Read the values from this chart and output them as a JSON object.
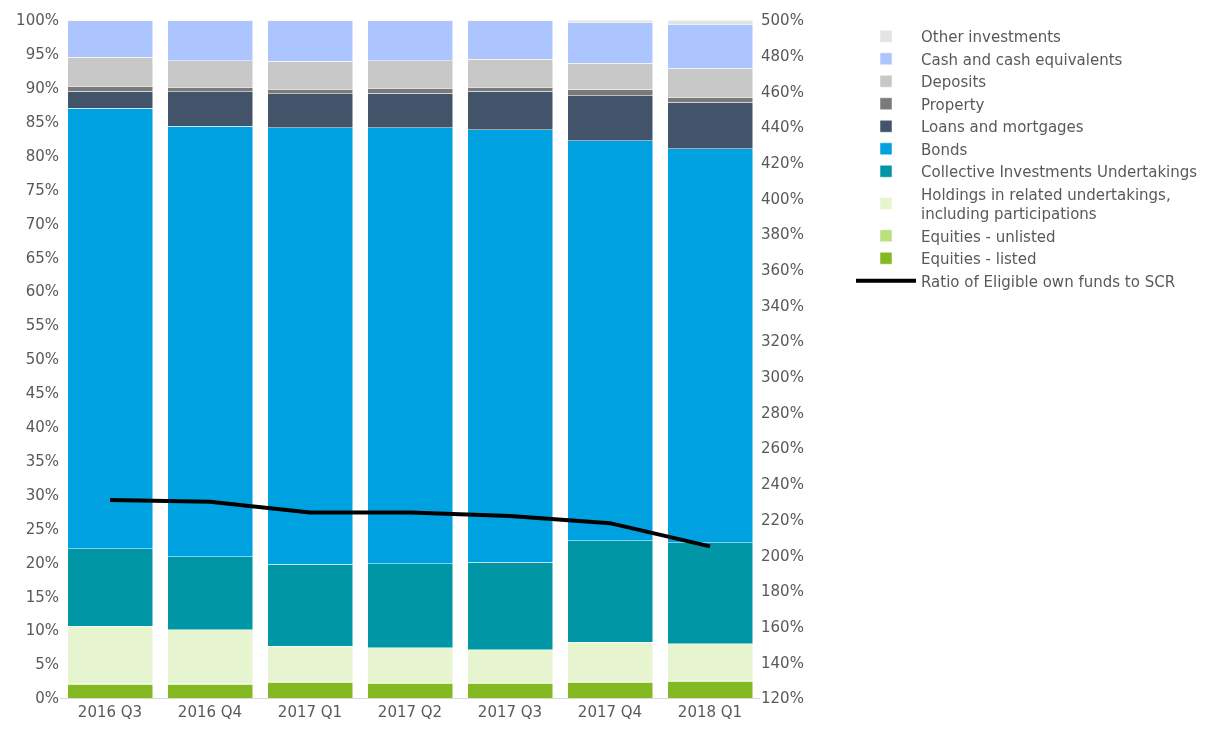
{
  "chart_data": {
    "type": "bar",
    "stacked": true,
    "categories": [
      "2016 Q3",
      "2016 Q4",
      "2017 Q1",
      "2017 Q2",
      "2017 Q3",
      "2017 Q4",
      "2018 Q1"
    ],
    "series": [
      {
        "name": "Equities - listed",
        "color": "#84b922",
        "values": [
          2.0,
          2.0,
          2.3,
          2.2,
          2.2,
          2.3,
          2.5
        ]
      },
      {
        "name": "Equities - unlisted",
        "color": "#b9e07a",
        "values": [
          0.1,
          0.1,
          0.1,
          0.1,
          0.1,
          0.1,
          0.1
        ]
      },
      {
        "name": "Holdings in related undertakings, including participations",
        "color": "#e6f4d0",
        "values": [
          8.5,
          8.0,
          5.2,
          5.1,
          4.8,
          5.8,
          5.4
        ]
      },
      {
        "name": "Collective Investments Undertakings",
        "color": "#0096a6",
        "values": [
          11.4,
          10.7,
          12.1,
          12.4,
          12.9,
          15.0,
          14.9
        ]
      },
      {
        "name": "Bonds",
        "color": "#00a1e0",
        "values": [
          65.0,
          63.5,
          64.4,
          64.3,
          63.8,
          59.0,
          58.1
        ]
      },
      {
        "name": "Loans and mortgages",
        "color": "#435369",
        "values": [
          2.5,
          5.1,
          5.0,
          5.1,
          5.7,
          6.6,
          6.9
        ]
      },
      {
        "name": "Property",
        "color": "#7a7a7a",
        "values": [
          0.7,
          0.7,
          0.7,
          0.7,
          0.6,
          0.9,
          0.7
        ]
      },
      {
        "name": "Deposits",
        "color": "#c8c8c8",
        "values": [
          4.3,
          3.9,
          4.1,
          4.1,
          4.1,
          3.9,
          4.3
        ]
      },
      {
        "name": "Cash and cash equivalents",
        "color": "#adc5ff",
        "values": [
          5.4,
          5.9,
          6.0,
          5.9,
          5.7,
          6.0,
          6.5
        ]
      },
      {
        "name": "Other investments",
        "color": "#e3e3e3",
        "values": [
          0.1,
          0.1,
          0.1,
          0.1,
          0.1,
          0.4,
          0.6
        ]
      },
      {
        "name": "Ratio of Eligible own funds to SCR",
        "color": "#000000",
        "type": "line",
        "axis": "y2",
        "values": [
          231,
          230,
          224,
          224,
          222,
          218,
          205
        ]
      }
    ],
    "ylim": [
      0,
      100
    ],
    "yticks": [
      {
        "value": 0,
        "label": "0%"
      },
      {
        "value": 5,
        "label": "5%"
      },
      {
        "value": 10,
        "label": "10%"
      },
      {
        "value": 15,
        "label": "15%"
      },
      {
        "value": 20,
        "label": "20%"
      },
      {
        "value": 25,
        "label": "25%"
      },
      {
        "value": 30,
        "label": "30%"
      },
      {
        "value": 35,
        "label": "35%"
      },
      {
        "value": 40,
        "label": "40%"
      },
      {
        "value": 45,
        "label": "45%"
      },
      {
        "value": 50,
        "label": "50%"
      },
      {
        "value": 55,
        "label": "55%"
      },
      {
        "value": 60,
        "label": "60%"
      },
      {
        "value": 65,
        "label": "65%"
      },
      {
        "value": 70,
        "label": "70%"
      },
      {
        "value": 75,
        "label": "75%"
      },
      {
        "value": 80,
        "label": "80%"
      },
      {
        "value": 85,
        "label": "85%"
      },
      {
        "value": 90,
        "label": "90%"
      },
      {
        "value": 95,
        "label": "95%"
      },
      {
        "value": 100,
        "label": "100%"
      }
    ],
    "y2lim": [
      120,
      500
    ],
    "y2ticks": [
      {
        "value": 120,
        "label": "120%"
      },
      {
        "value": 140,
        "label": "140%"
      },
      {
        "value": 160,
        "label": "160%"
      },
      {
        "value": 180,
        "label": "180%"
      },
      {
        "value": 200,
        "label": "200%"
      },
      {
        "value": 220,
        "label": "220%"
      },
      {
        "value": 240,
        "label": "240%"
      },
      {
        "value": 260,
        "label": "260%"
      },
      {
        "value": 280,
        "label": "280%"
      },
      {
        "value": 300,
        "label": "300%"
      },
      {
        "value": 320,
        "label": "320%"
      },
      {
        "value": 340,
        "label": "340%"
      },
      {
        "value": 360,
        "label": "360%"
      },
      {
        "value": 380,
        "label": "380%"
      },
      {
        "value": 400,
        "label": "400%"
      },
      {
        "value": 420,
        "label": "420%"
      },
      {
        "value": 440,
        "label": "440%"
      },
      {
        "value": 460,
        "label": "460%"
      },
      {
        "value": 480,
        "label": "480%"
      },
      {
        "value": 500,
        "label": "500%"
      }
    ],
    "legend": "right",
    "marker": "none",
    "line_style": "solid"
  }
}
